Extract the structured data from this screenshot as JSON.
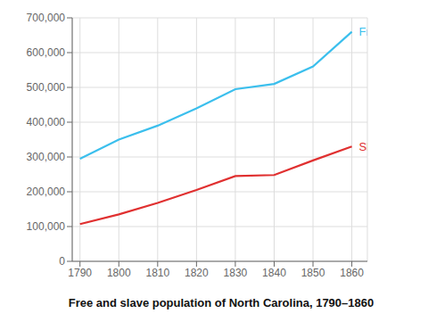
{
  "chart_data": {
    "type": "line",
    "title": "Free and slave population of North Carolina, 1790–1860",
    "x": [
      1790,
      1800,
      1810,
      1820,
      1830,
      1840,
      1850,
      1860
    ],
    "series": [
      {
        "name": "Free",
        "color": "#3bbfed",
        "values": [
          295000,
          350000,
          390000,
          440000,
          495000,
          510000,
          560000,
          660000
        ]
      },
      {
        "name": "Slave",
        "color": "#e03030",
        "values": [
          107000,
          135000,
          168000,
          205000,
          245000,
          248000,
          290000,
          330000
        ]
      }
    ],
    "xlim": [
      1788,
      1864
    ],
    "xticks": [
      1790,
      1800,
      1810,
      1820,
      1830,
      1840,
      1850,
      1860
    ],
    "ylim": [
      0,
      700000
    ],
    "yticks": [
      0,
      {
        "value": 100000,
        "label": "100,000"
      },
      {
        "value": 200000,
        "label": "200,000"
      },
      {
        "value": 300000,
        "label": "300,000"
      },
      {
        "value": 400000,
        "label": "400,000"
      },
      {
        "value": 500000,
        "label": "500,000"
      },
      {
        "value": 600000,
        "label": "600,000"
      },
      {
        "value": 700000,
        "label": "700,000"
      }
    ],
    "grid": true
  }
}
